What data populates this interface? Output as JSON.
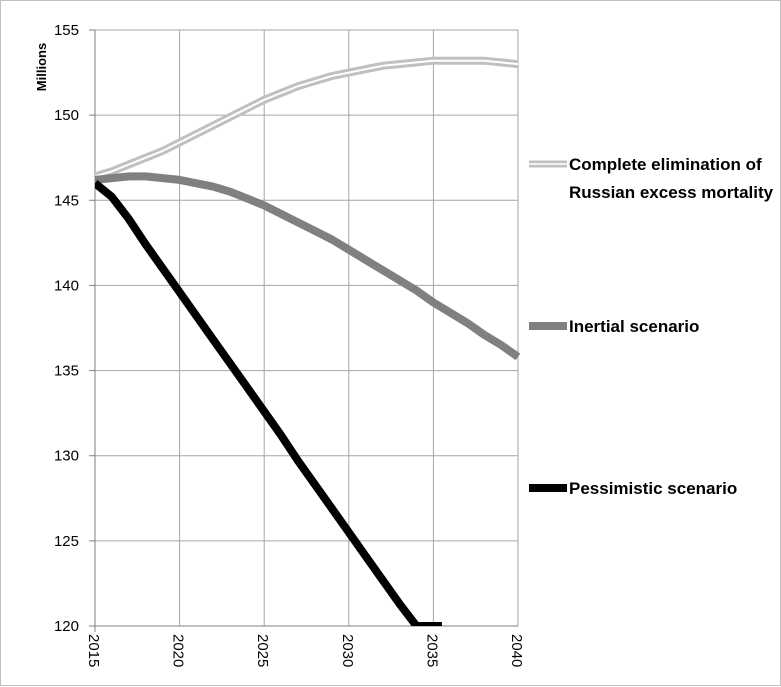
{
  "chart_data": {
    "type": "line",
    "title": "",
    "xlabel": "",
    "ylabel": "Millions",
    "xlim": [
      2015,
      2040
    ],
    "ylim": [
      120,
      155
    ],
    "x_ticks": [
      "2015",
      "2020",
      "2025",
      "2030",
      "2035",
      "2040"
    ],
    "y_ticks": [
      "120",
      "125",
      "130",
      "135",
      "140",
      "145",
      "150",
      "155"
    ],
    "grid": true,
    "legend_position": "right",
    "series": [
      {
        "name": "Complete elimination of Russian excess mortality",
        "color": "#c0c0c0",
        "style": "double",
        "x": [
          2015,
          2016,
          2017,
          2018,
          2019,
          2020,
          2021,
          2022,
          2023,
          2024,
          2025,
          2026,
          2027,
          2028,
          2029,
          2030,
          2031,
          2032,
          2033,
          2034,
          2035,
          2036,
          2037,
          2038,
          2039,
          2040
        ],
        "values": [
          146.4,
          146.7,
          147.1,
          147.5,
          147.9,
          148.4,
          148.9,
          149.4,
          149.9,
          150.4,
          150.9,
          151.3,
          151.7,
          152.0,
          152.3,
          152.5,
          152.7,
          152.9,
          153.0,
          153.1,
          153.2,
          153.2,
          153.2,
          153.2,
          153.1,
          153.0
        ]
      },
      {
        "name": "Inertial scenario",
        "color": "#808080",
        "style": "solid",
        "x": [
          2015,
          2016,
          2017,
          2018,
          2019,
          2020,
          2021,
          2022,
          2023,
          2024,
          2025,
          2026,
          2027,
          2028,
          2029,
          2030,
          2031,
          2032,
          2033,
          2034,
          2035,
          2036,
          2037,
          2038,
          2039,
          2040
        ],
        "values": [
          146.2,
          146.3,
          146.4,
          146.4,
          146.3,
          146.2,
          146.0,
          145.8,
          145.5,
          145.1,
          144.7,
          144.2,
          143.7,
          143.2,
          142.7,
          142.1,
          141.5,
          140.9,
          140.3,
          139.7,
          139.0,
          138.4,
          137.8,
          137.1,
          136.5,
          135.8
        ]
      },
      {
        "name": "Pessimistic scenario",
        "color": "#000000",
        "style": "solid",
        "x": [
          2015,
          2016,
          2017,
          2018,
          2019,
          2020,
          2021,
          2022,
          2023,
          2024,
          2025,
          2026,
          2027,
          2028,
          2029,
          2030,
          2031,
          2032,
          2033,
          2034,
          2035,
          2035.5
        ],
        "values": [
          146.0,
          145.2,
          143.9,
          142.4,
          141.0,
          139.6,
          138.2,
          136.8,
          135.4,
          134.0,
          132.6,
          131.2,
          129.7,
          128.3,
          126.9,
          125.5,
          124.1,
          122.7,
          121.3,
          120.0,
          120.0,
          120.0
        ]
      }
    ]
  }
}
